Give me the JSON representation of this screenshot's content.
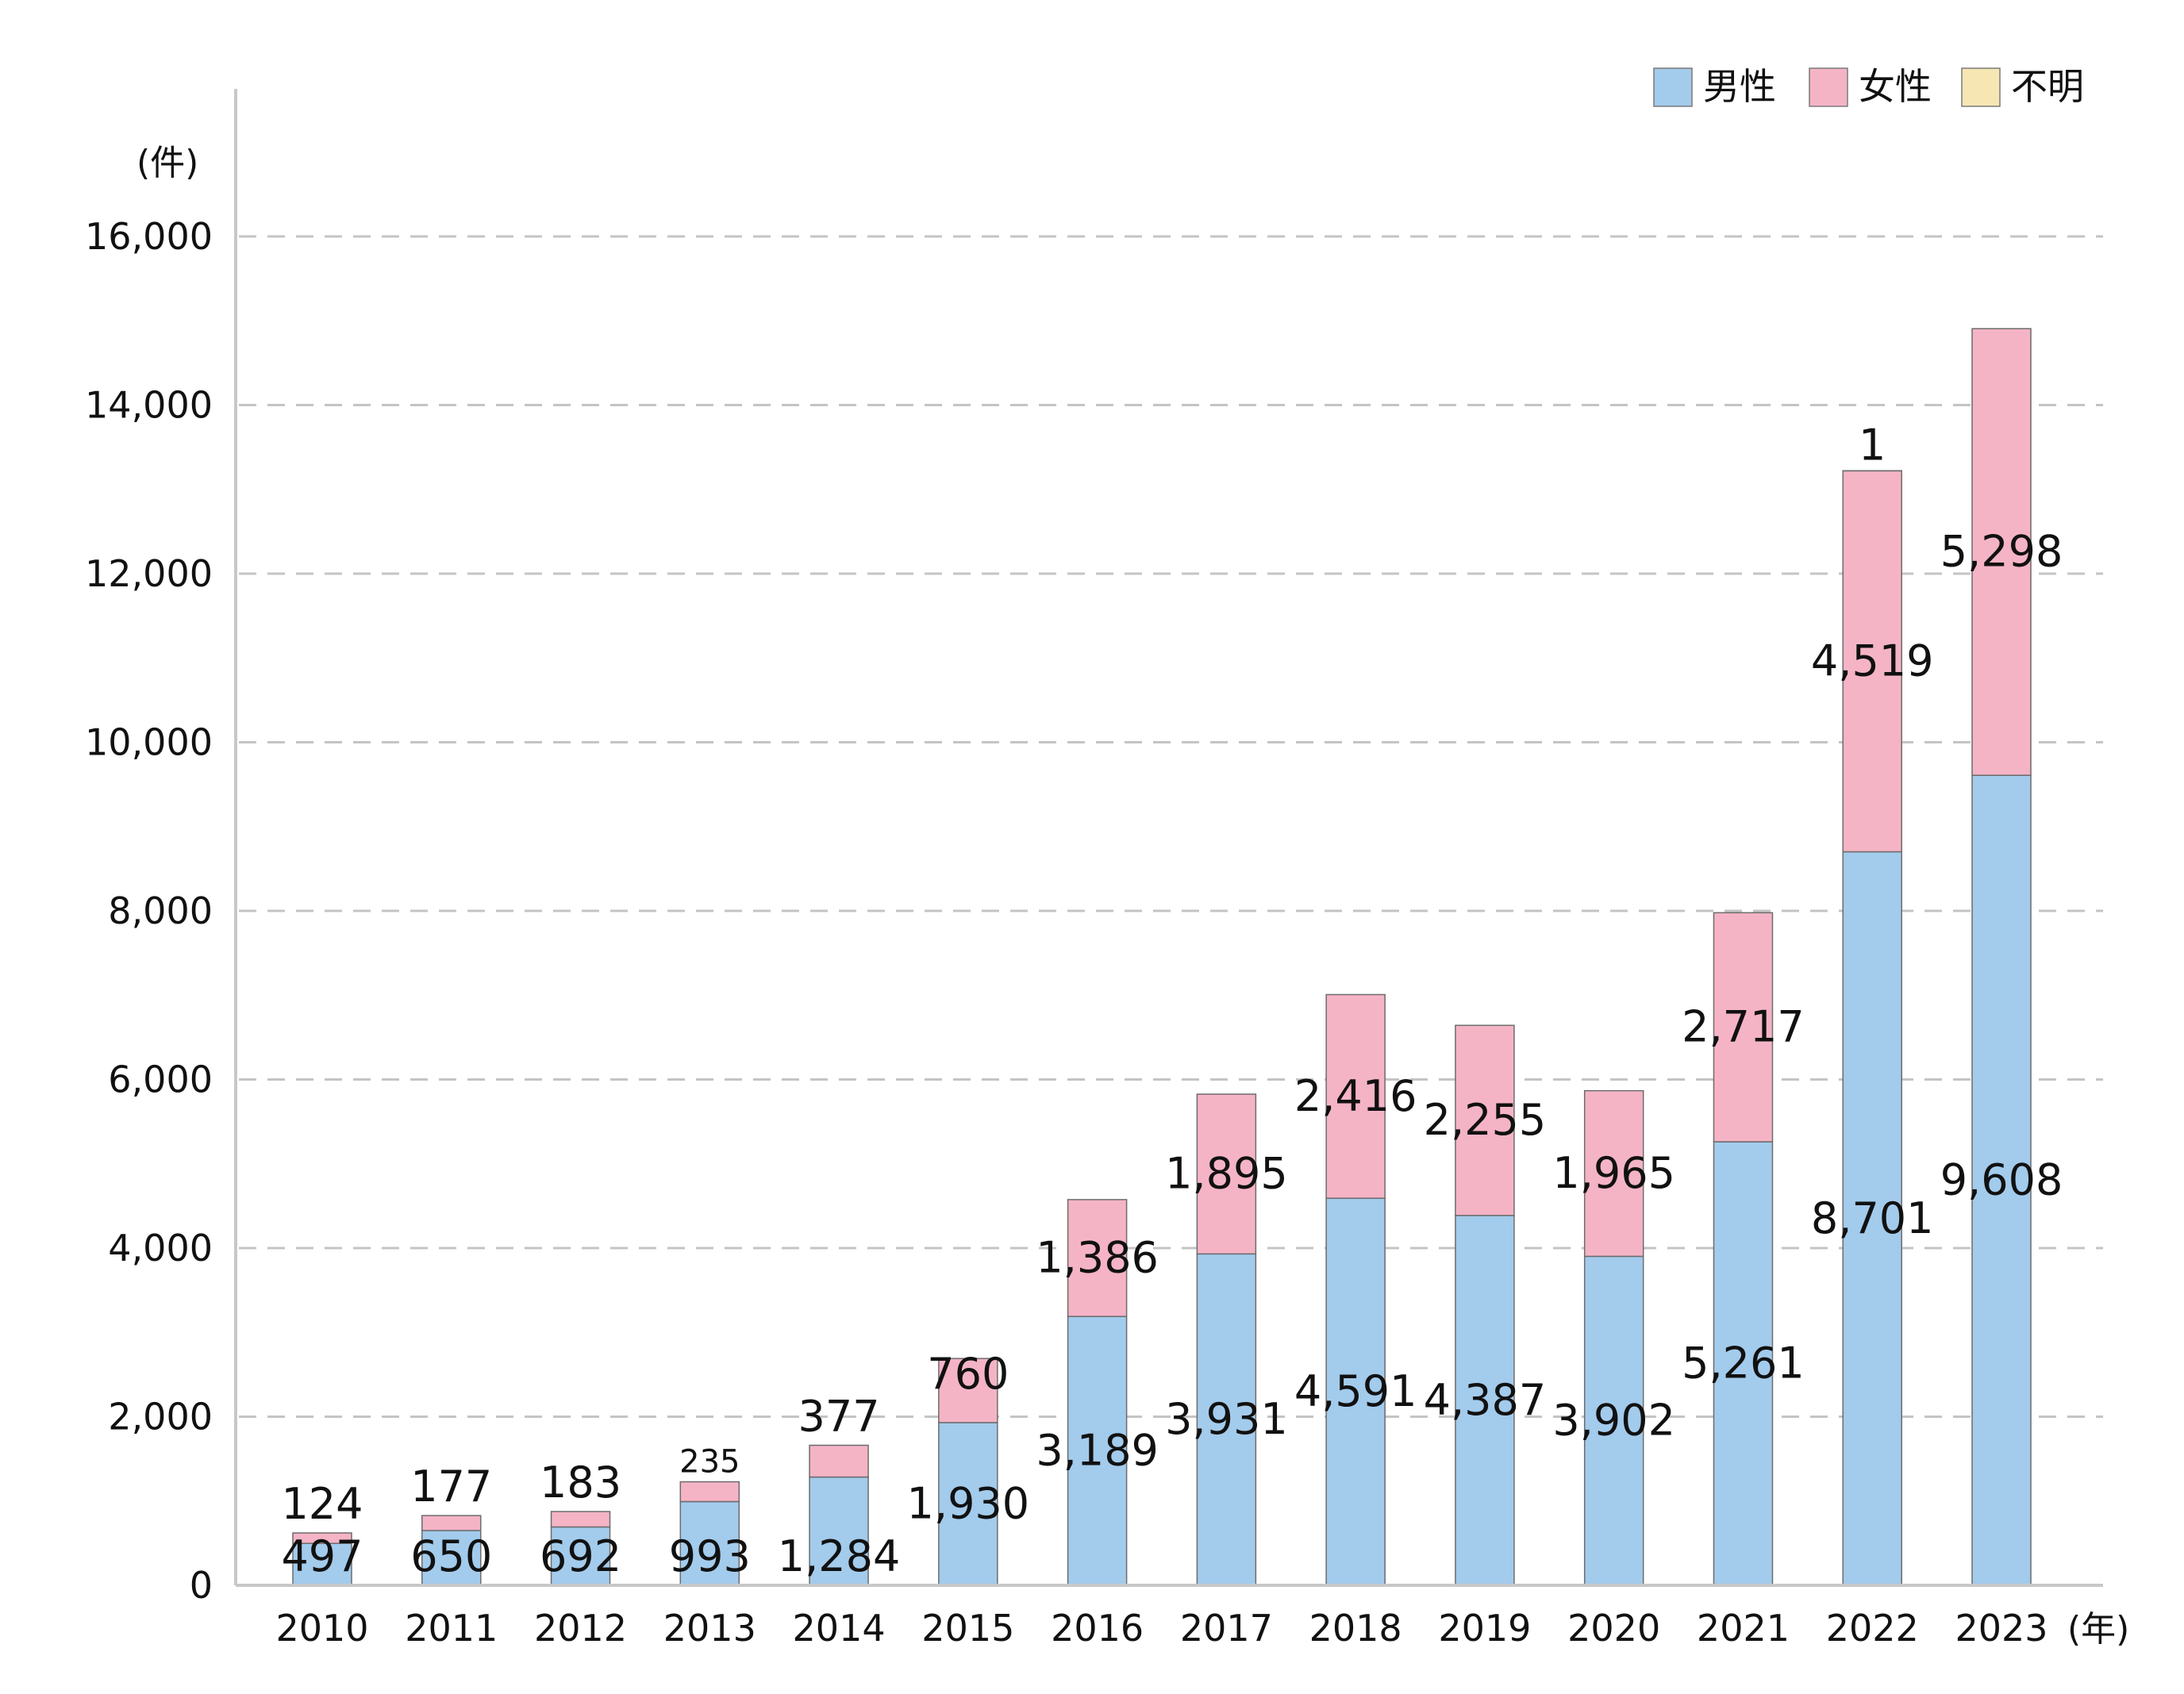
{
  "chart_data": {
    "type": "bar",
    "stacked": true,
    "categories": [
      "2010",
      "2011",
      "2012",
      "2013",
      "2014",
      "2015",
      "2016",
      "2017",
      "2018",
      "2019",
      "2020",
      "2021",
      "2022",
      "2023"
    ],
    "series": [
      {
        "name": "男性",
        "color": "#a3cbec",
        "values": [
          497,
          650,
          692,
          993,
          1284,
          1930,
          3189,
          3931,
          4591,
          4387,
          3902,
          5261,
          8701,
          9608
        ]
      },
      {
        "name": "女性",
        "color": "#f5b4c6",
        "values": [
          124,
          177,
          183,
          235,
          377,
          760,
          1386,
          1895,
          2416,
          2255,
          1965,
          2717,
          4519,
          5298
        ]
      },
      {
        "name": "不明",
        "color": "#f5e6b3",
        "values": [
          0,
          0,
          0,
          0,
          0,
          0,
          0,
          0,
          0,
          0,
          0,
          0,
          1,
          0
        ]
      }
    ],
    "data_labels": {
      "男性": [
        "497",
        "650",
        "692",
        "993",
        "1,284",
        "1,930",
        "3,189",
        "3,931",
        "4,591",
        "4,387",
        "3,902",
        "5,261",
        "8,701",
        "9,608"
      ],
      "女性": [
        "124",
        "177",
        "183",
        "235",
        "377",
        "760",
        "1,386",
        "1,895",
        "2,416",
        "2,255",
        "1,965",
        "2,717",
        "4,519",
        "5,298"
      ],
      "不明": [
        "",
        "",
        "",
        "",
        "",
        "",
        "",
        "",
        "",
        "",
        "",
        "",
        "1",
        ""
      ]
    },
    "y_unit": "(件)",
    "x_unit": "(年)",
    "y_ticks": [
      0,
      2000,
      4000,
      6000,
      8000,
      10000,
      12000,
      14000,
      16000
    ],
    "y_tick_labels": [
      "0",
      "2,000",
      "4,000",
      "6,000",
      "8,000",
      "10,000",
      "12,000",
      "14,000",
      "16,000"
    ],
    "ylim": [
      0,
      16000
    ],
    "grid": true,
    "legend_position": "top-right"
  }
}
